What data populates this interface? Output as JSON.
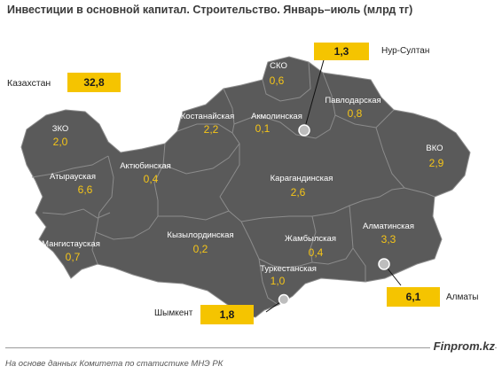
{
  "title": "Инвестиции в основной капитал. Строительство. Январь–июль (млрд тг)",
  "total": {
    "label": "Казахстан",
    "value": "32,8"
  },
  "regions": [
    {
      "id": "zko",
      "name": "ЗКО",
      "value": "2,0"
    },
    {
      "id": "atyrau",
      "name": "Атырауская",
      "value": "6,6"
    },
    {
      "id": "mangystau",
      "name": "Мангистауская",
      "value": "0,7"
    },
    {
      "id": "aktobe",
      "name": "Актюбинская",
      "value": "0,4"
    },
    {
      "id": "kostanay",
      "name": "Костанайская",
      "value": "2,2"
    },
    {
      "id": "sko",
      "name": "СКО",
      "value": "0,6"
    },
    {
      "id": "akmola",
      "name": "Акмолинская",
      "value": "0,1"
    },
    {
      "id": "pavlodar",
      "name": "Павлодарская",
      "value": "0,8"
    },
    {
      "id": "vko",
      "name": "ВКО",
      "value": "2,9"
    },
    {
      "id": "karaganda",
      "name": "Карагандинская",
      "value": "2,6"
    },
    {
      "id": "kyzylorda",
      "name": "Кызылординская",
      "value": "0,2"
    },
    {
      "id": "zhambyl",
      "name": "Жамбылская",
      "value": "0,4"
    },
    {
      "id": "almaty_obl",
      "name": "Алматинская",
      "value": "3,3"
    },
    {
      "id": "turkestan",
      "name": "Туркестанская",
      "value": "1,0"
    }
  ],
  "cities": [
    {
      "id": "nur_sultan",
      "name": "Нур-Султан",
      "value": "1,3"
    },
    {
      "id": "almaty",
      "name": "Алматы",
      "value": "6,1"
    },
    {
      "id": "shymkent",
      "name": "Шымкент",
      "value": "1,8"
    }
  ],
  "colors": {
    "land": "#5a5a5a",
    "border": "#8c8c8c",
    "value": "#f5c518",
    "callout": "#f5c400"
  },
  "footer": {
    "source": "На основе данных  Комитета по статистике МНЭ РК",
    "brand": "Finprom.kz"
  }
}
